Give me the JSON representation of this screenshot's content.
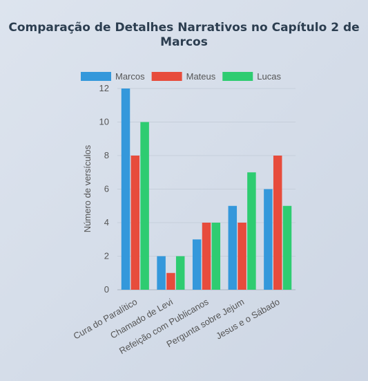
{
  "chart_data": {
    "type": "bar",
    "title": "Comparação de Detalhes Narrativos no Capítulo 2 de Marcos",
    "xlabel": "",
    "ylabel": "Número de versículos",
    "ylim": [
      0,
      12
    ],
    "yticks": [
      0,
      2,
      4,
      6,
      8,
      10,
      12
    ],
    "grid": true,
    "legend_position": "top",
    "categories": [
      "Cura do Paralítico",
      "Chamado de Levi",
      "Refeição com Publicanos",
      "Pergunta sobre Jejum",
      "Jesus e o Sábado"
    ],
    "series": [
      {
        "name": "Marcos",
        "color": "#3498db",
        "values": [
          12,
          2,
          3,
          5,
          6
        ]
      },
      {
        "name": "Mateus",
        "color": "#e74c3c",
        "values": [
          8,
          1,
          4,
          4,
          8
        ]
      },
      {
        "name": "Lucas",
        "color": "#2ecc71",
        "values": [
          10,
          2,
          4,
          7,
          5
        ]
      }
    ]
  }
}
